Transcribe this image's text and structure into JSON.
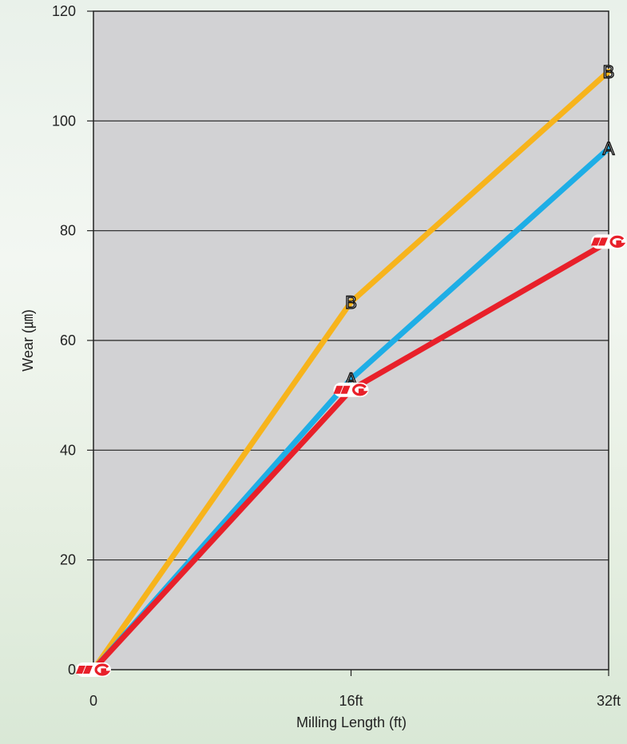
{
  "chart_data": {
    "type": "line",
    "xlabel": "Milling Length (ft)",
    "ylabel": "Wear (㎛)",
    "x_ticks": [
      "0",
      "16ft",
      "32ft"
    ],
    "x": [
      0,
      16,
      32
    ],
    "xlim": [
      0,
      32
    ],
    "y_ticks": [
      "0",
      "20",
      "40",
      "60",
      "80",
      "100",
      "120"
    ],
    "ylim": [
      0,
      120
    ],
    "grid": "horizontal",
    "series": [
      {
        "name": "B",
        "color": "#f7b41c",
        "values": [
          0,
          67,
          109
        ],
        "marker": "letter"
      },
      {
        "name": "A",
        "color": "#1eaee6",
        "values": [
          0,
          53,
          95
        ],
        "marker": "letter"
      },
      {
        "name": "YG",
        "color": "#e8202a",
        "values": [
          0,
          51,
          78
        ],
        "marker": "yg-logo-icon"
      }
    ]
  }
}
